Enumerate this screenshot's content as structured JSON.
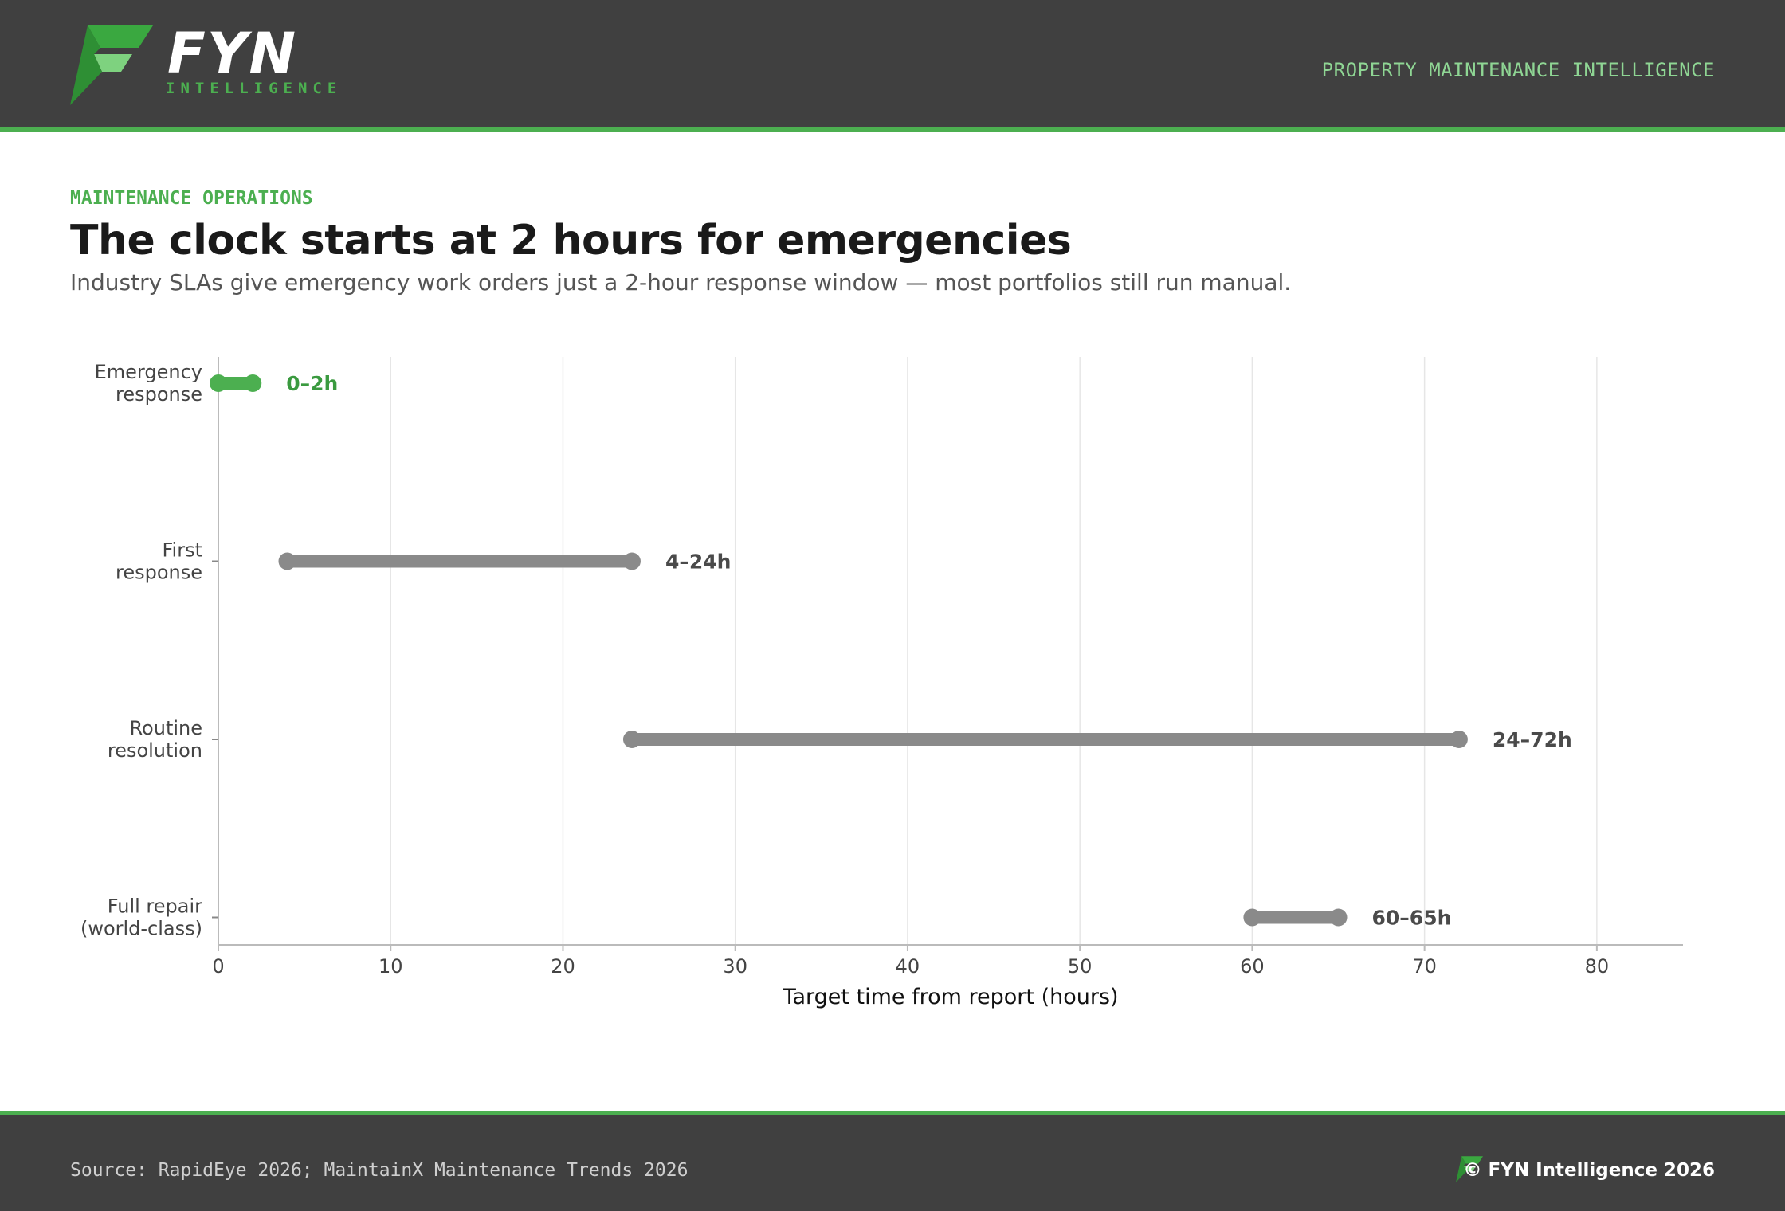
{
  "header": {
    "brand_name": "FYN",
    "brand_tagline": "INTELLIGENCE",
    "right_label": "PROPERTY MAINTENANCE INTELLIGENCE",
    "logo_icon": "fyn-logo-icon"
  },
  "kicker": "MAINTENANCE OPERATIONS",
  "title": "The clock starts at 2 hours for emergencies",
  "subtitle": "Industry SLAs give emergency work orders just a 2-hour response window — most portfolios still run manual.",
  "colors": {
    "accent": "#4caf50",
    "highlight_text": "#3a9a3f",
    "neutral_bar": "#8a8a8a",
    "neutral_text": "#4a4a4a",
    "header_bg": "#404040"
  },
  "chart_data": {
    "type": "range-bar",
    "xlabel": "Target time from report (hours)",
    "xlim": [
      0,
      85
    ],
    "xticks": [
      0,
      10,
      20,
      30,
      40,
      50,
      60,
      70,
      80
    ],
    "grid": "vertical",
    "categories": [
      {
        "label_lines": [
          "Emergency",
          "response"
        ],
        "start": 0,
        "end": 2,
        "value_label": "0–2h",
        "highlight": true
      },
      {
        "label_lines": [
          "First",
          "response"
        ],
        "start": 4,
        "end": 24,
        "value_label": "4–24h",
        "highlight": false
      },
      {
        "label_lines": [
          "Routine",
          "resolution"
        ],
        "start": 24,
        "end": 72,
        "value_label": "24–72h",
        "highlight": false
      },
      {
        "label_lines": [
          "Full repair",
          "(world-class)"
        ],
        "start": 60,
        "end": 65,
        "value_label": "60–65h",
        "highlight": false
      }
    ]
  },
  "footer": {
    "source": "Source: RapidEye 2026; MaintainX Maintenance Trends 2026",
    "copyright": "© FYN Intelligence 2026"
  }
}
